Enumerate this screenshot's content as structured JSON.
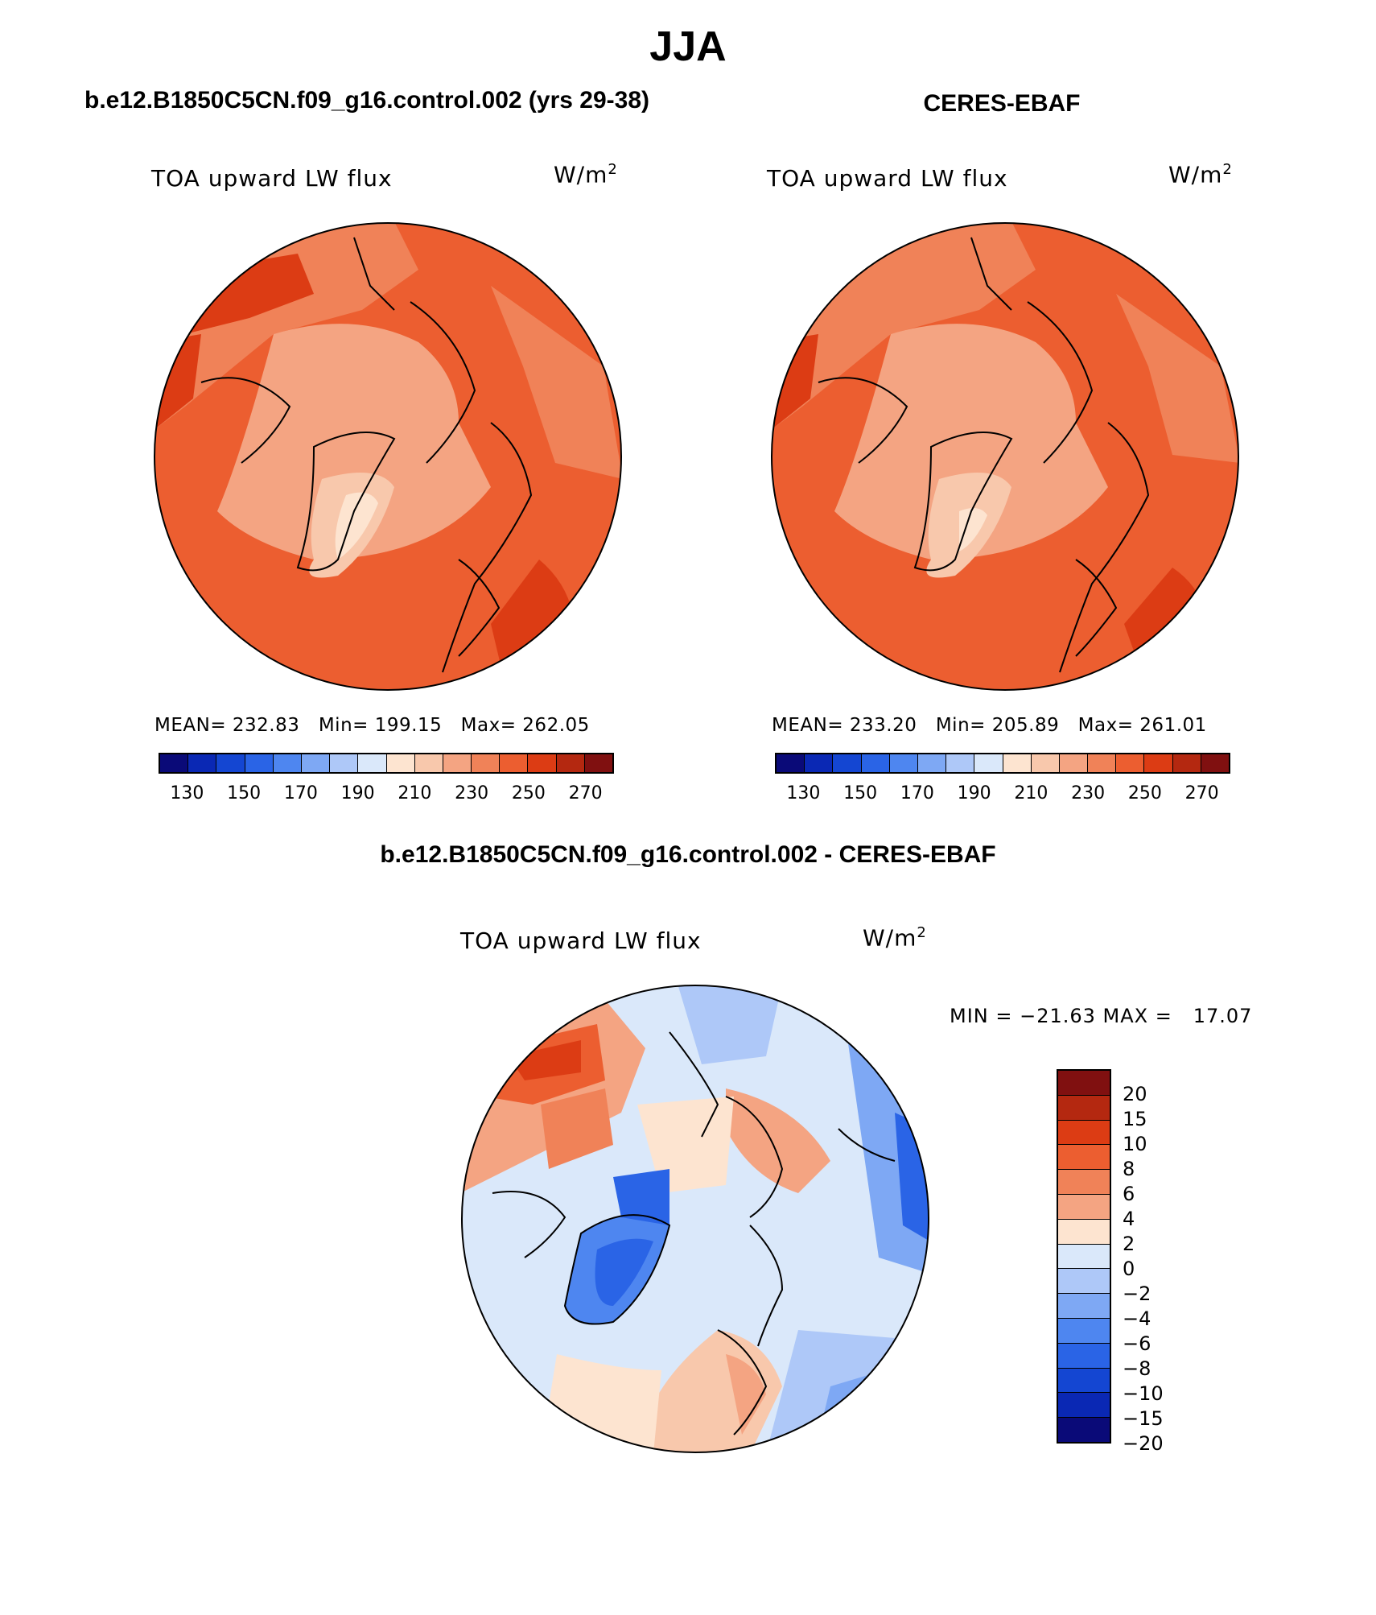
{
  "main_title": "JJA",
  "left_panel": {
    "title": "b.e12.B1850C5CN.f09_g16.control.002 (yrs 29-38)",
    "variable": "TOA upward LW flux",
    "unit_base": "W/m",
    "unit_exp": "2",
    "stats": {
      "mean_label": "MEAN=",
      "mean": "232.83",
      "min_label": "Min=",
      "min": "199.15",
      "max_label": "Max=",
      "max": "262.05"
    }
  },
  "right_panel": {
    "title": "CERES-EBAF",
    "variable": "TOA upward LW flux",
    "unit_base": "W/m",
    "unit_exp": "2",
    "stats": {
      "mean_label": "MEAN=",
      "mean": "233.20",
      "min_label": "Min=",
      "min": "205.89",
      "max_label": "Max=",
      "max": "261.01"
    }
  },
  "diff_panel": {
    "title": "b.e12.B1850C5CN.f09_g16.control.002 - CERES-EBAF",
    "variable": "TOA upward LW flux",
    "unit_base": "W/m",
    "unit_exp": "2",
    "minmax_text": "MIN = −21.63 MAX =   17.07"
  },
  "abs_colorbar": {
    "colors": [
      "#0a0a78",
      "#0a28b4",
      "#1446d2",
      "#2a64e6",
      "#4e86f0",
      "#7ea8f4",
      "#aec8f8",
      "#dae8fa",
      "#fde4d0",
      "#f8c8ac",
      "#f4a482",
      "#f08258",
      "#ec5e30",
      "#dc3c14",
      "#b42810",
      "#801010"
    ],
    "tick_labels": [
      "130",
      "150",
      "170",
      "190",
      "210",
      "230",
      "250",
      "270"
    ]
  },
  "diff_colorbar": {
    "colors": [
      "#801010",
      "#b42810",
      "#dc3c14",
      "#ec5e30",
      "#f08258",
      "#f4a482",
      "#fde4d0",
      "#dae8fa",
      "#aec8f8",
      "#7ea8f4",
      "#4e86f0",
      "#2a64e6",
      "#1446d2",
      "#0a28b4",
      "#0a0a78"
    ],
    "tick_labels": [
      "20",
      "15",
      "10",
      "8",
      "6",
      "4",
      "2",
      "0",
      "−2",
      "−4",
      "−6",
      "−8",
      "−10",
      "−15",
      "−20"
    ]
  }
}
